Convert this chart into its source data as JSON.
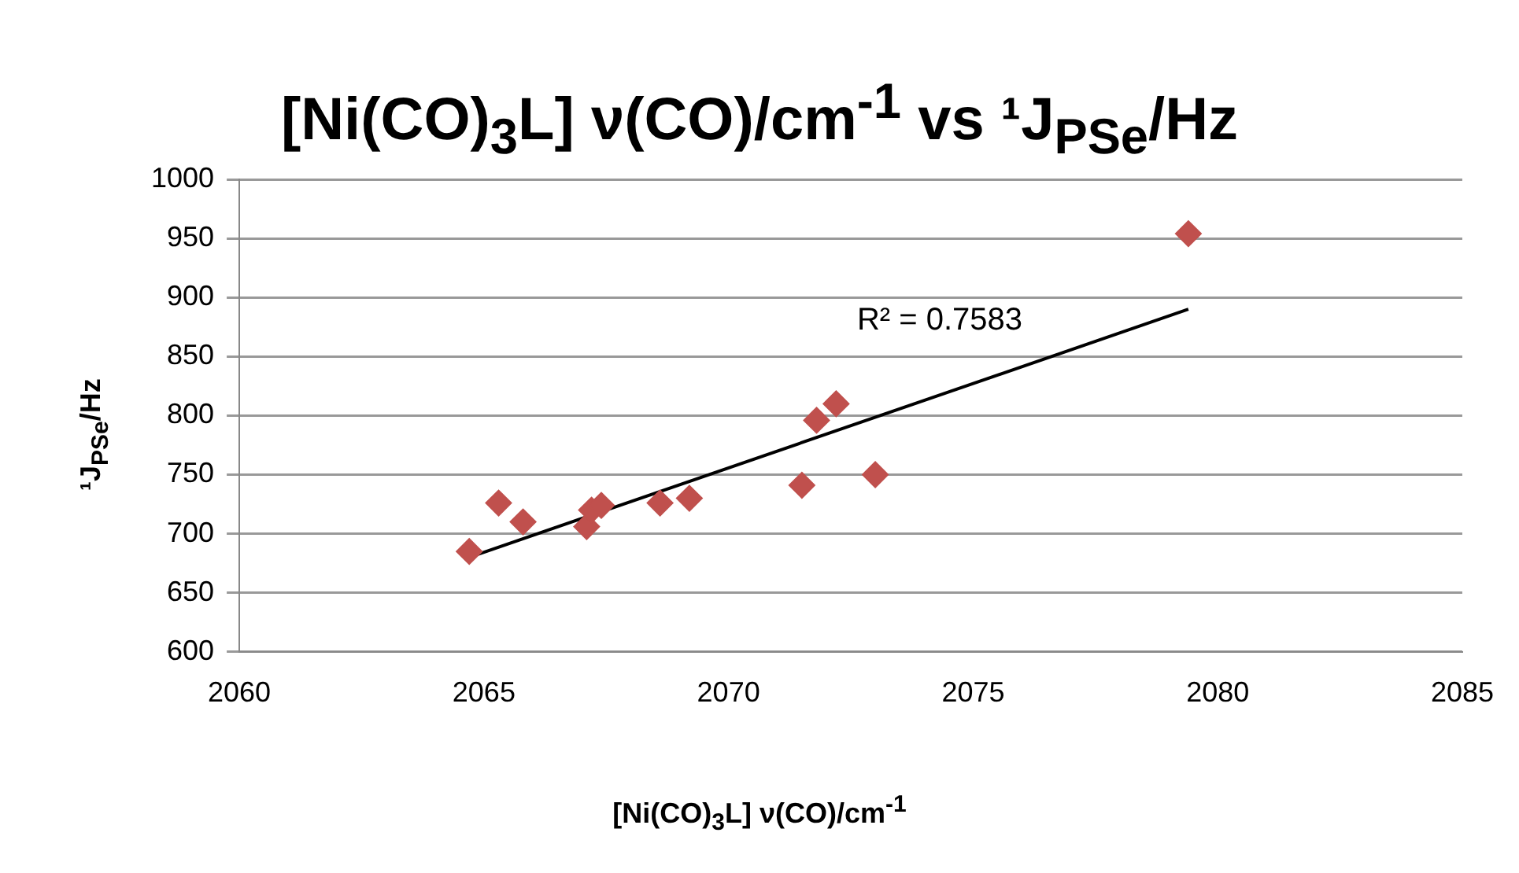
{
  "chart_data": {
    "type": "scatter",
    "title": "[Ni(CO)$_{3}$L] ν(CO)/cm$^{-1}$ vs ¹J$_{PSe}$/Hz",
    "xlabel": "[Ni(CO)$_{3}$L] ν(CO)/cm$^{-1}$",
    "ylabel": "¹J$_{PSe}$/Hz",
    "xlim": [
      2060,
      2085
    ],
    "xticks": [
      2060,
      2065,
      2070,
      2075,
      2080,
      2085
    ],
    "ylim": [
      600,
      1000
    ],
    "yticks": [
      600,
      650,
      700,
      750,
      800,
      850,
      900,
      950,
      1000
    ],
    "grid": "y",
    "legend": false,
    "marker": "diamond",
    "series": [
      {
        "color": "#c0504d",
        "x": [
          2064.7,
          2065.3,
          2065.8,
          2067.1,
          2067.2,
          2067.4,
          2068.6,
          2069.2,
          2071.5,
          2071.8,
          2072.2,
          2073.0,
          2079.4
        ],
        "values": [
          685,
          726,
          710,
          706,
          720,
          724,
          726,
          730,
          741,
          796,
          810,
          750,
          954
        ]
      },
      {
        "type": "line",
        "color": "#000000",
        "marker": "none",
        "x": [
          2064.7,
          2079.4
        ],
        "values": [
          680,
          890
        ]
      }
    ],
    "annotations": [
      "R² = 0.7583"
    ]
  }
}
